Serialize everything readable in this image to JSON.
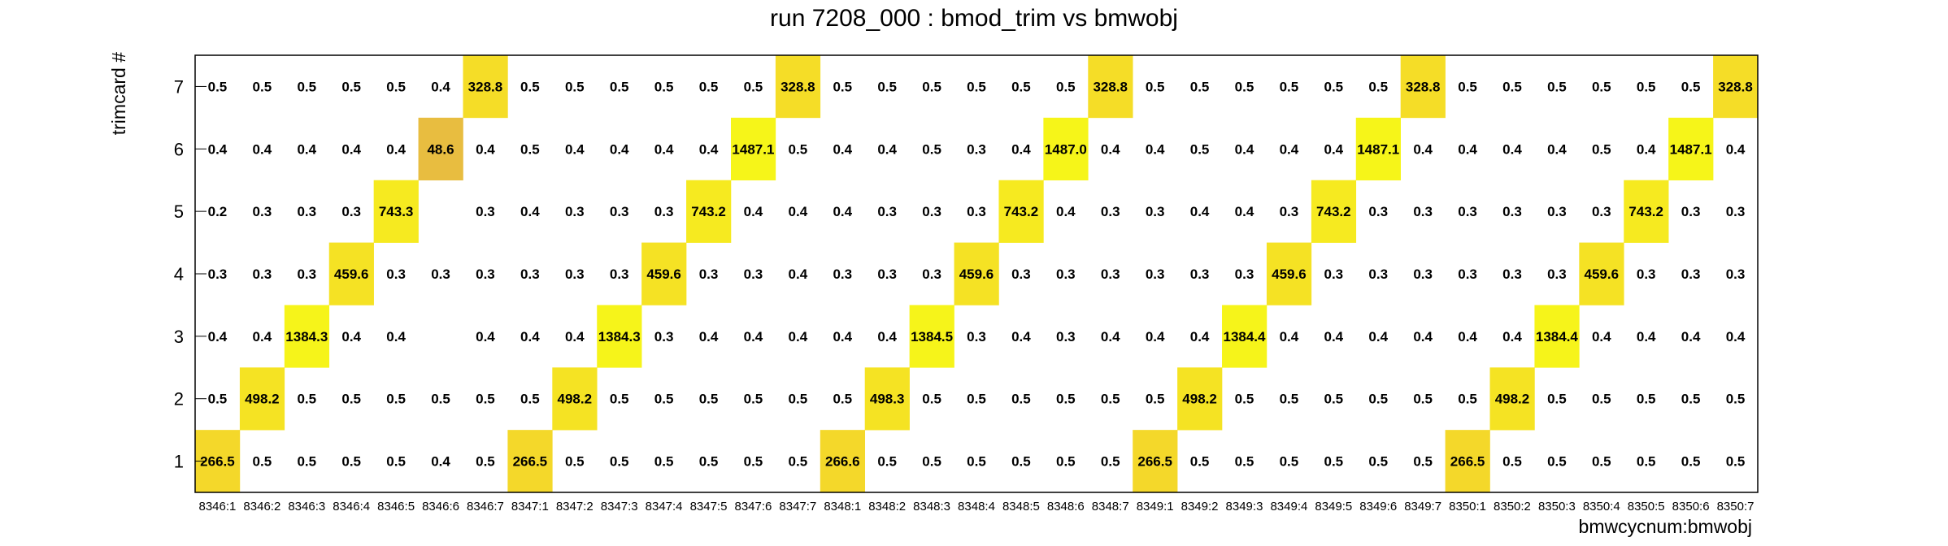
{
  "chart_data": {
    "type": "heatmap",
    "title": "run 7208_000 : bmod_trim vs bmwobj",
    "xlabel": "bmwcycnum:bmwobj",
    "ylabel": "trimcard #",
    "x_categories": [
      "8346:1",
      "8346:2",
      "8346:3",
      "8346:4",
      "8346:5",
      "8346:6",
      "8346:7",
      "8347:1",
      "8347:2",
      "8347:3",
      "8347:4",
      "8347:5",
      "8347:6",
      "8347:7",
      "8348:1",
      "8348:2",
      "8348:3",
      "8348:4",
      "8348:5",
      "8348:6",
      "8348:7",
      "8349:1",
      "8349:2",
      "8349:3",
      "8349:4",
      "8349:5",
      "8349:6",
      "8349:7",
      "8350:1",
      "8350:2",
      "8350:3",
      "8350:4",
      "8350:5",
      "8350:6",
      "8350:7"
    ],
    "y_categories": [
      "1",
      "2",
      "3",
      "4",
      "5",
      "6",
      "7"
    ],
    "rows": [
      {
        "y": "7",
        "values": [
          0.5,
          0.5,
          0.5,
          0.5,
          0.5,
          0.4,
          328.8,
          0.5,
          0.5,
          0.5,
          0.5,
          0.5,
          0.5,
          328.8,
          0.5,
          0.5,
          0.5,
          0.5,
          0.5,
          0.5,
          328.8,
          0.5,
          0.5,
          0.5,
          0.5,
          0.5,
          0.5,
          328.8,
          0.5,
          0.5,
          0.5,
          0.5,
          0.5,
          0.5,
          328.8
        ]
      },
      {
        "y": "6",
        "values": [
          0.4,
          0.4,
          0.4,
          0.4,
          0.4,
          48.6,
          0.4,
          0.5,
          0.4,
          0.4,
          0.4,
          0.4,
          1487.1,
          0.5,
          0.4,
          0.4,
          0.5,
          0.3,
          0.4,
          1487.0,
          0.4,
          0.4,
          0.5,
          0.4,
          0.4,
          0.4,
          1487.1,
          0.4,
          0.4,
          0.4,
          0.4,
          0.5,
          0.4,
          1487.1,
          0.4
        ]
      },
      {
        "y": "5",
        "values": [
          0.2,
          0.3,
          0.3,
          0.3,
          743.3,
          null,
          0.3,
          0.4,
          0.3,
          0.3,
          0.3,
          743.2,
          0.4,
          0.4,
          0.4,
          0.3,
          0.3,
          0.3,
          743.2,
          0.4,
          0.3,
          0.3,
          0.4,
          0.4,
          0.3,
          743.2,
          0.3,
          0.3,
          0.3,
          0.3,
          0.3,
          0.3,
          743.2,
          0.3,
          0.3
        ]
      },
      {
        "y": "4",
        "values": [
          0.3,
          0.3,
          0.3,
          459.6,
          0.3,
          0.3,
          0.3,
          0.3,
          0.3,
          0.3,
          459.6,
          0.3,
          0.3,
          0.4,
          0.3,
          0.3,
          0.3,
          459.6,
          0.3,
          0.3,
          0.3,
          0.3,
          0.3,
          0.3,
          459.6,
          0.3,
          0.3,
          0.3,
          0.3,
          0.3,
          0.3,
          459.6,
          0.3,
          0.3,
          0.3
        ]
      },
      {
        "y": "3",
        "values": [
          0.4,
          0.4,
          1384.3,
          0.4,
          0.4,
          null,
          0.4,
          0.4,
          0.4,
          1384.3,
          0.3,
          0.4,
          0.4,
          0.4,
          0.4,
          0.4,
          1384.5,
          0.3,
          0.4,
          0.3,
          0.4,
          0.4,
          0.4,
          1384.4,
          0.4,
          0.4,
          0.4,
          0.4,
          0.4,
          0.4,
          1384.4,
          0.4,
          0.4,
          0.4,
          0.4
        ]
      },
      {
        "y": "2",
        "values": [
          0.5,
          498.2,
          0.5,
          0.5,
          0.5,
          0.5,
          0.5,
          0.5,
          498.2,
          0.5,
          0.5,
          0.5,
          0.5,
          0.5,
          0.5,
          498.3,
          0.5,
          0.5,
          0.5,
          0.5,
          0.5,
          0.5,
          498.2,
          0.5,
          0.5,
          0.5,
          0.5,
          0.5,
          0.5,
          498.2,
          0.5,
          0.5,
          0.5,
          0.5,
          0.5
        ]
      },
      {
        "y": "1",
        "values": [
          266.5,
          0.5,
          0.5,
          0.5,
          0.5,
          0.4,
          0.5,
          266.5,
          0.5,
          0.5,
          0.5,
          0.5,
          0.5,
          0.5,
          266.6,
          0.5,
          0.5,
          0.5,
          0.5,
          0.5,
          0.5,
          266.5,
          0.5,
          0.5,
          0.5,
          0.5,
          0.5,
          0.5,
          266.5,
          0.5,
          0.5,
          0.5,
          0.5,
          0.5,
          0.5
        ]
      }
    ],
    "color_scale": {
      "type": "log",
      "stops": [
        "#3aa08c",
        "#61bb8a",
        "#a8c65a",
        "#d9b84a",
        "#eebf3c",
        "#f5dd27",
        "#f6f519"
      ]
    },
    "grid": false,
    "legend": "none"
  }
}
